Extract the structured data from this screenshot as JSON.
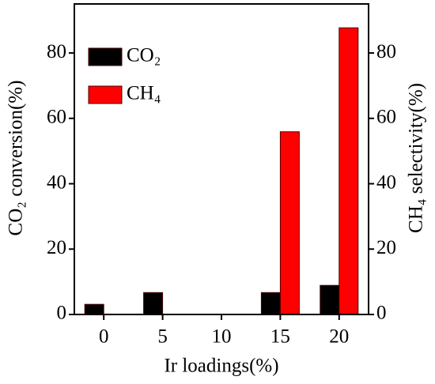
{
  "chart_data": {
    "type": "bar",
    "x_label": "Ir loadings(%)",
    "y_label": "CO₂ conversion(%)",
    "y2_label": "CH₄ selectivity(%)",
    "categories": [
      "0",
      "5",
      "10",
      "15",
      "20"
    ],
    "series": [
      {
        "name": "CO₂",
        "color": "#000000",
        "values": [
          3.1,
          6.7,
          0,
          6.7,
          8.9
        ]
      },
      {
        "name": "CH₄",
        "color": "#ff0000",
        "axis": "y2",
        "values": [
          0,
          0,
          0,
          55.9,
          87.7
        ]
      }
    ],
    "ylim": [
      0,
      95
    ],
    "yticks": [
      0,
      20,
      40,
      60,
      80
    ],
    "y2lim": [
      0,
      95
    ],
    "y2ticks": [
      0,
      20,
      40,
      60,
      80
    ],
    "legend": "top-left"
  }
}
